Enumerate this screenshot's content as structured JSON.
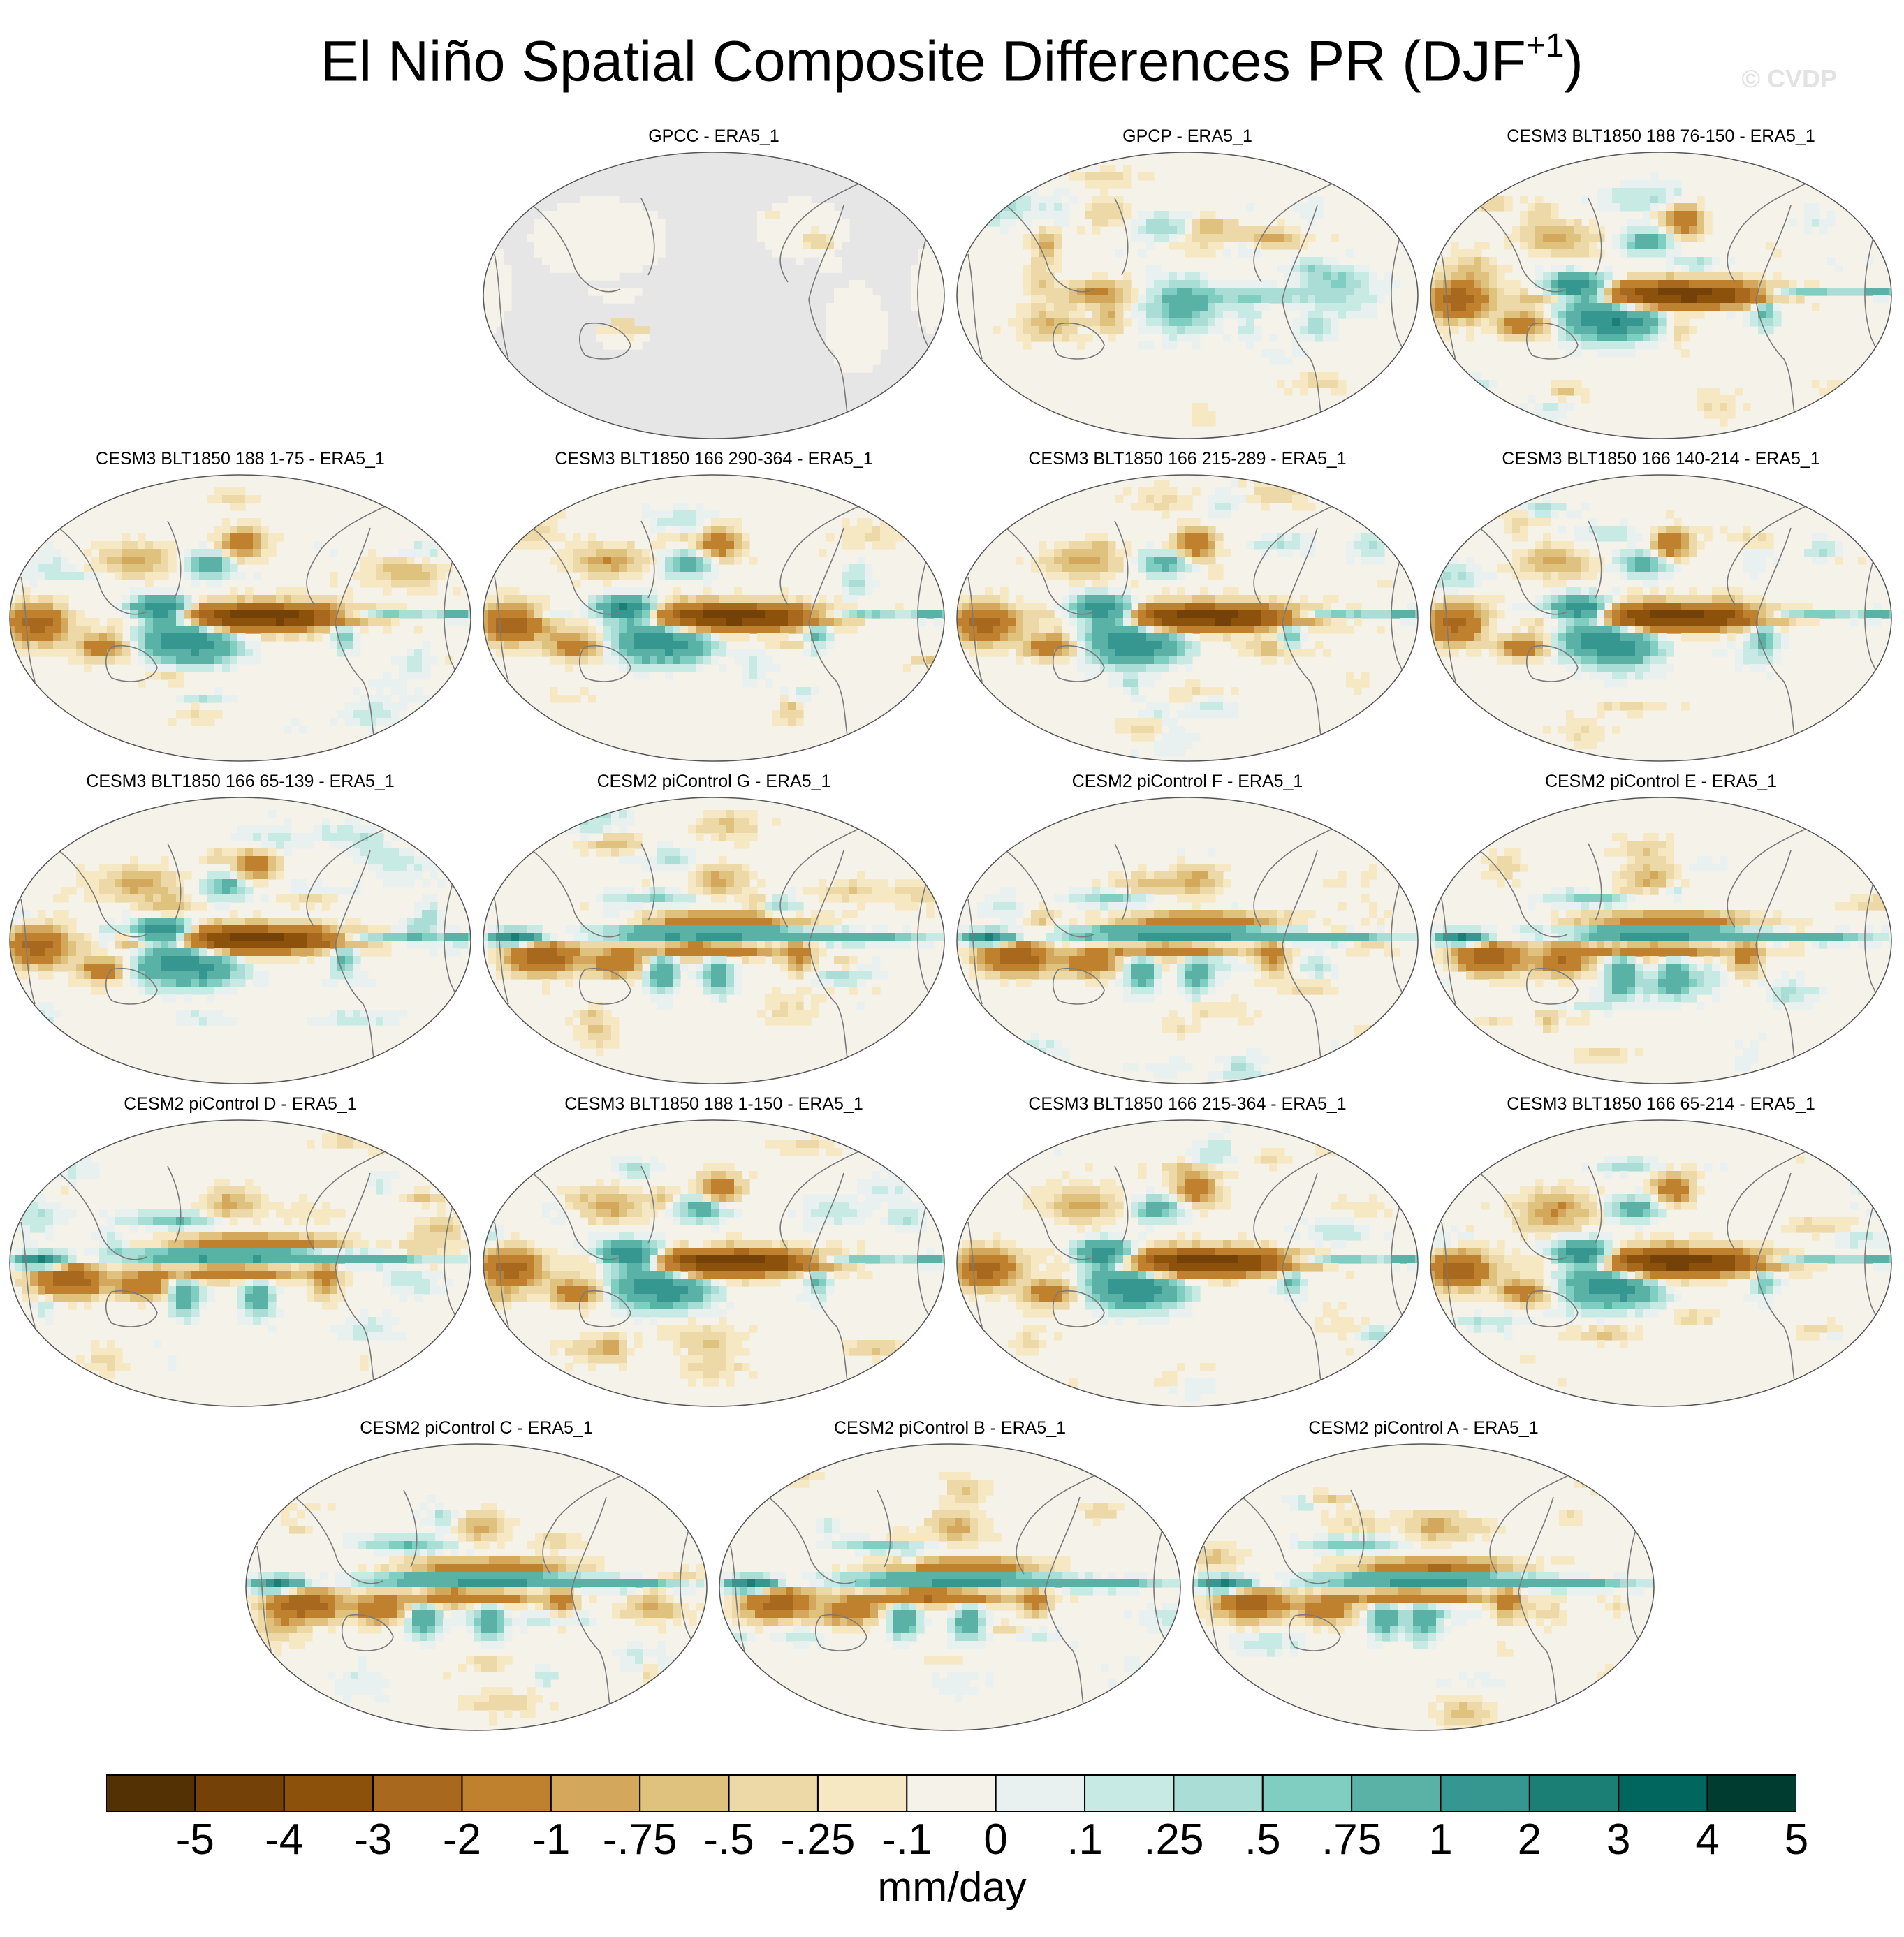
{
  "title_main": "El Niño Spatial Composite Differences PR (DJF",
  "title_sup": "+1",
  "title_close": ")",
  "watermark": "© CVDP",
  "chart_data": {
    "type": "heatmap",
    "title": "El Niño Spatial Composite Differences PR (DJF+1)",
    "projection": "Robinson, centered on the Pacific",
    "units": "mm/day",
    "colorbar": {
      "levels": [
        "-5",
        "-4",
        "-3",
        "-2",
        "-1",
        "-.75",
        "-.5",
        "-.25",
        "-.1",
        "0",
        ".1",
        ".25",
        ".5",
        ".75",
        "1",
        "2",
        "3",
        "4",
        "5"
      ],
      "colors": [
        "#543005",
        "#744209",
        "#8c510a",
        "#a8691e",
        "#bf812d",
        "#d3a85d",
        "#dfc27d",
        "#edd9a8",
        "#f6e8c3",
        "#f5f2ea",
        "#e8f1ef",
        "#c7eae5",
        "#a9ddd5",
        "#80cdc1",
        "#5ab2a7",
        "#35978f",
        "#1c7f76",
        "#01665e",
        "#003c30"
      ]
    },
    "panels": [
      {
        "title": "GPCC - ERA5_1",
        "pattern": "land"
      },
      {
        "title": "GPCP - ERA5_1",
        "pattern": "obs"
      },
      {
        "title": "CESM3 BLT1850 188 76-150 - ERA5_1",
        "pattern": "c3"
      },
      {
        "title": "CESM3 BLT1850 188 1-75 - ERA5_1",
        "pattern": "c3"
      },
      {
        "title": "CESM3 BLT1850 166 290-364 - ERA5_1",
        "pattern": "c3"
      },
      {
        "title": "CESM3 BLT1850 166 215-289 - ERA5_1",
        "pattern": "c3"
      },
      {
        "title": "CESM3 BLT1850 166 140-214 - ERA5_1",
        "pattern": "c3"
      },
      {
        "title": "CESM3 BLT1850 166 65-139 - ERA5_1",
        "pattern": "c3"
      },
      {
        "title": "CESM2 piControl G - ERA5_1",
        "pattern": "c2"
      },
      {
        "title": "CESM2 piControl F - ERA5_1",
        "pattern": "c2"
      },
      {
        "title": "CESM2 piControl E - ERA5_1",
        "pattern": "c2"
      },
      {
        "title": "CESM2 piControl D - ERA5_1",
        "pattern": "c2"
      },
      {
        "title": "CESM3 BLT1850 188 1-150 - ERA5_1",
        "pattern": "c3"
      },
      {
        "title": "CESM3 BLT1850 166 215-364 - ERA5_1",
        "pattern": "c3"
      },
      {
        "title": "CESM3 BLT1850 166 65-214 - ERA5_1",
        "pattern": "c3"
      },
      {
        "title": "CESM2 piControl C - ERA5_1",
        "pattern": "c2"
      },
      {
        "title": "CESM2 piControl B - ERA5_1",
        "pattern": "c2"
      },
      {
        "title": "CESM2 piControl A - ERA5_1",
        "pattern": "c2"
      }
    ]
  }
}
